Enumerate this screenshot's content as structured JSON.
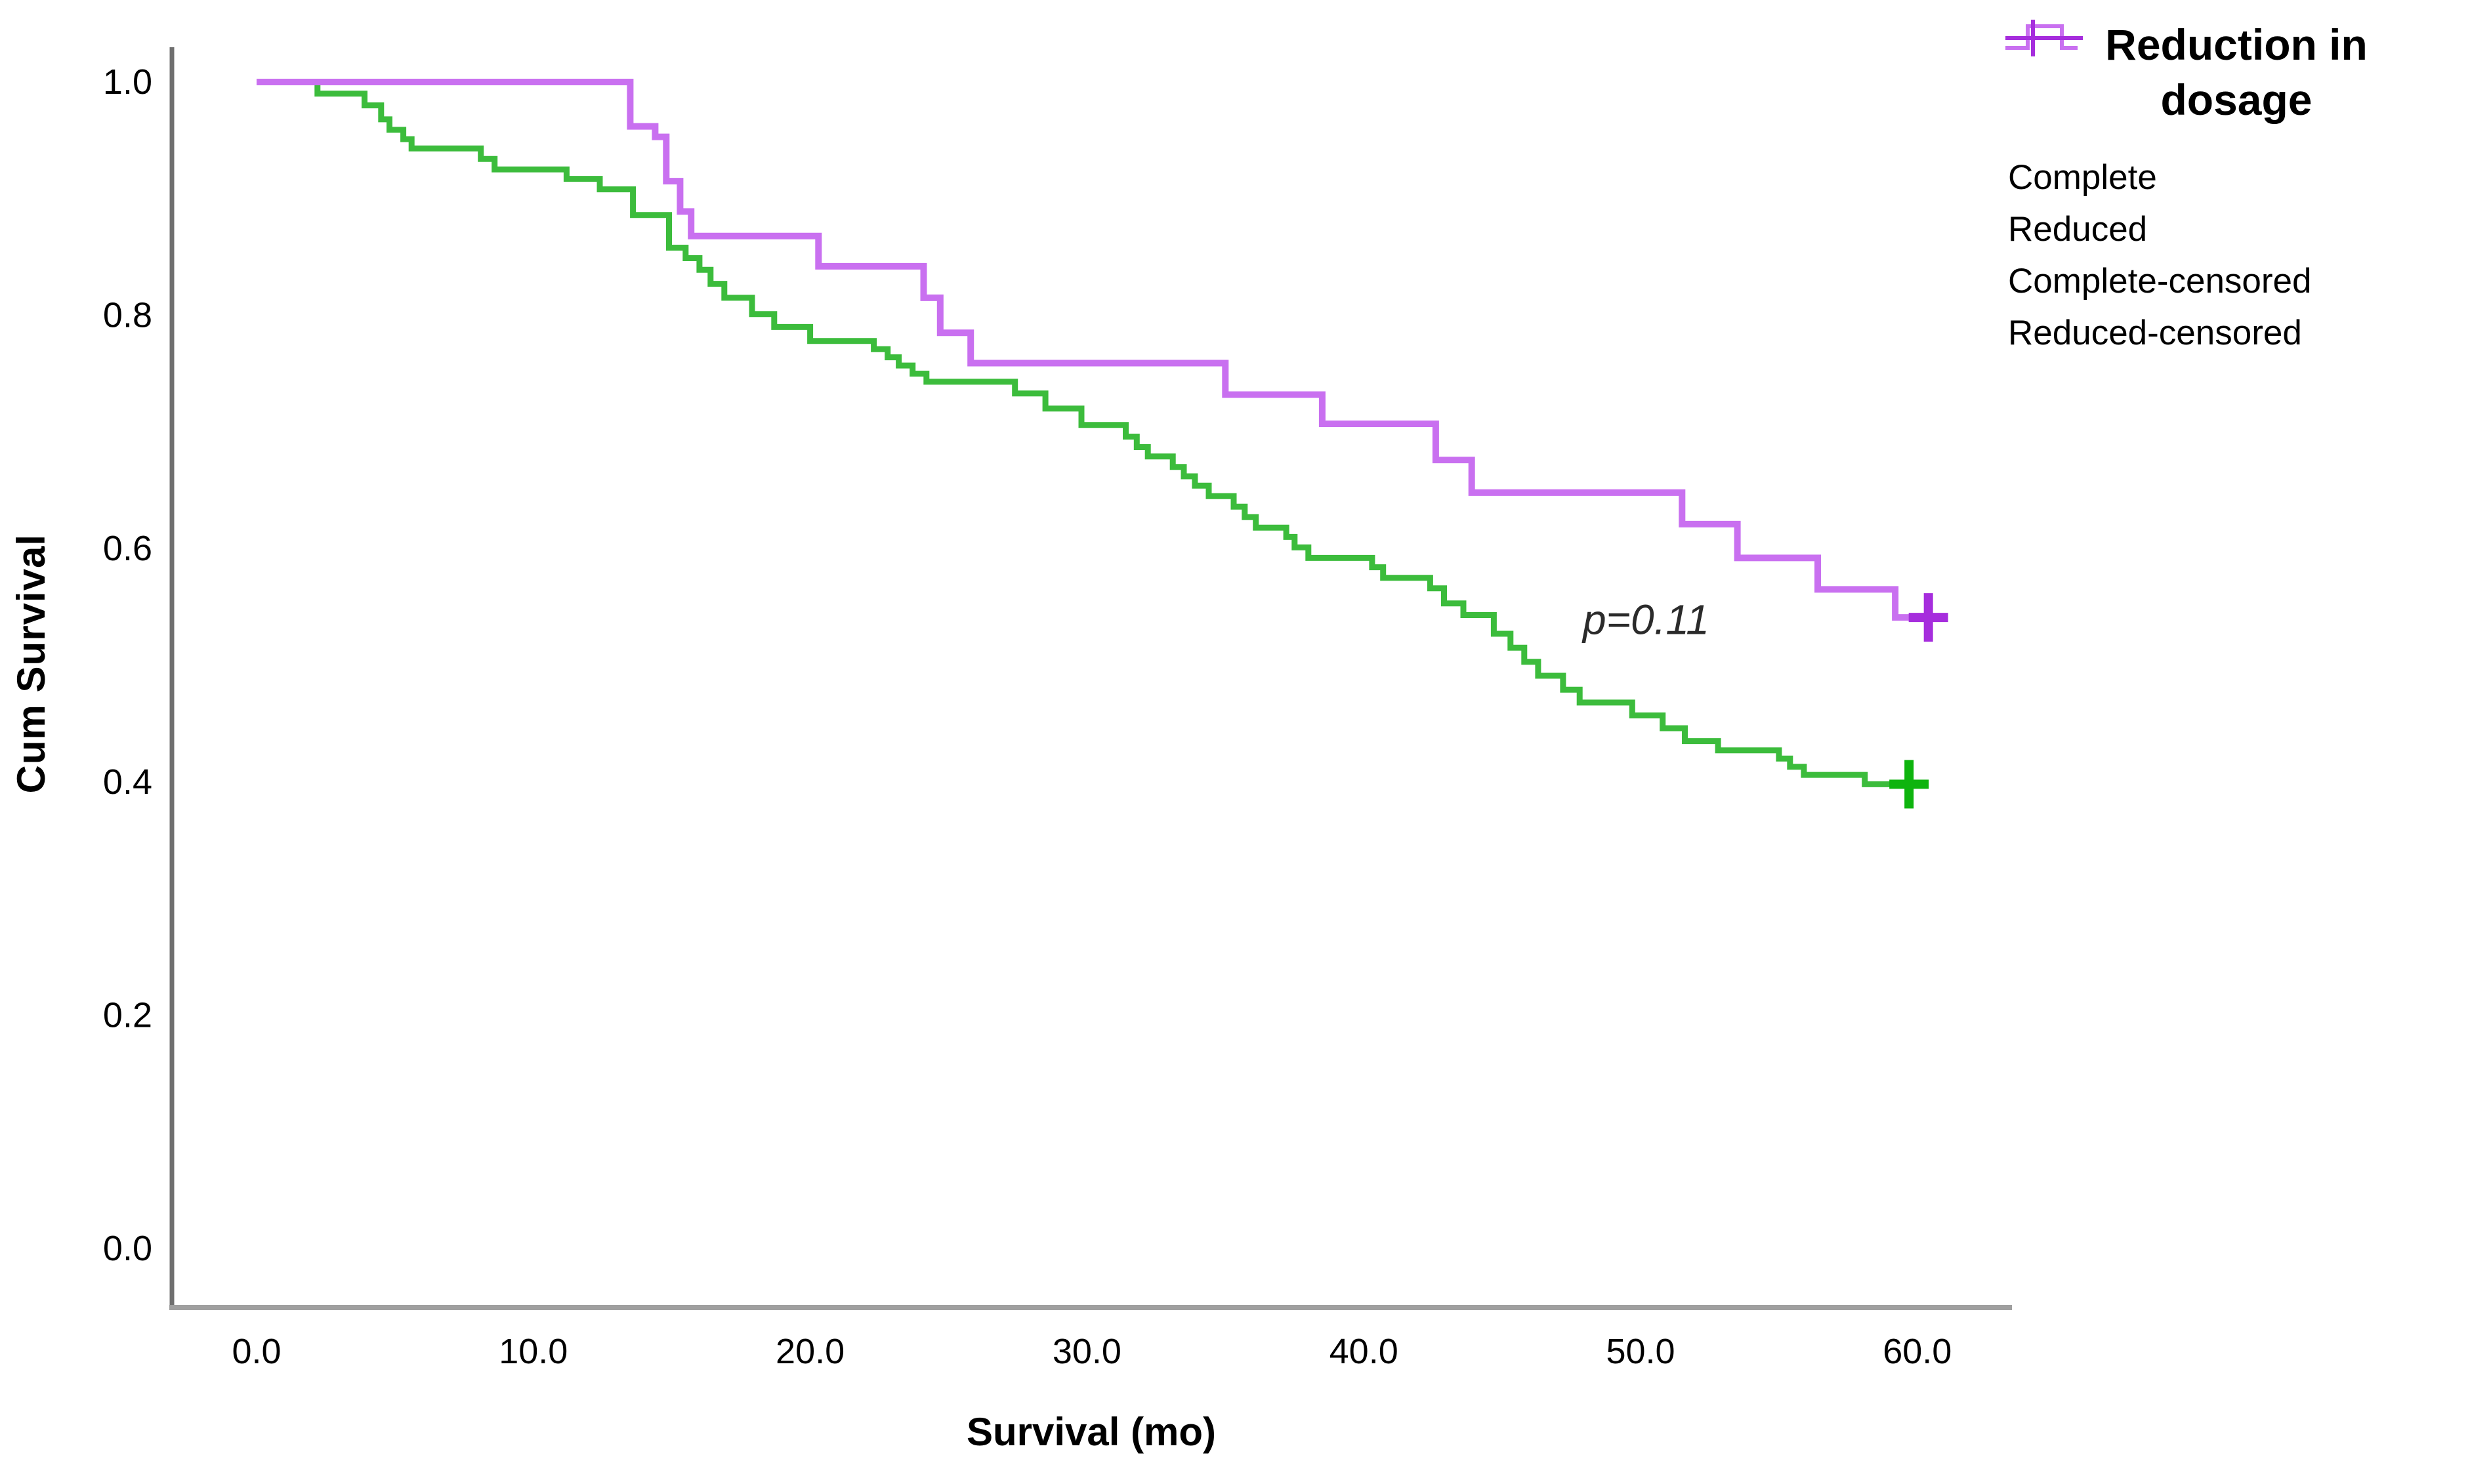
{
  "figure": {
    "y_axis_title": "Cum Survival",
    "x_axis_title": "Survival (mo)",
    "legend": {
      "title": "Reduction in dosage",
      "items": [
        {
          "label": "Complete",
          "type": "step-line",
          "color": "#3cbc3c"
        },
        {
          "label": "Reduced",
          "type": "step-line",
          "color": "#c970f0"
        },
        {
          "label": "Complete-censored",
          "type": "censor-plus",
          "color": "#0eb40e"
        },
        {
          "label": "Reduced-censored",
          "type": "censor-plus",
          "color": "#a62ddd"
        }
      ]
    }
  },
  "chart_data": {
    "type": "line",
    "subtype": "kaplan-meier-step",
    "title": "",
    "xlabel": "Survival (mo)",
    "ylabel": "Cum Survival",
    "xlim": [
      0,
      63.5
    ],
    "ylim": [
      0,
      1.05
    ],
    "grid": false,
    "legend_position": "top-right",
    "annotation": {
      "text": "p=0.11",
      "x": 50.2,
      "y": 0.539,
      "color": "#2b2b2b"
    },
    "x_ticks": [
      {
        "value": 0,
        "label": "0.0"
      },
      {
        "value": 10,
        "label": "10.0"
      },
      {
        "value": 20,
        "label": "20.0"
      },
      {
        "value": 30,
        "label": "30.0"
      },
      {
        "value": 40,
        "label": "40.0"
      },
      {
        "value": 50,
        "label": "50.0"
      },
      {
        "value": 60,
        "label": "60.0"
      }
    ],
    "y_ticks": [
      {
        "value": 0.0,
        "label": "0.0"
      },
      {
        "value": 0.2,
        "label": "0.2"
      },
      {
        "value": 0.4,
        "label": "0.4"
      },
      {
        "value": 0.6,
        "label": "0.6"
      },
      {
        "value": 0.8,
        "label": "0.8"
      },
      {
        "value": 1.0,
        "label": "1.0"
      }
    ],
    "series": [
      {
        "name": "Complete",
        "color": "#3cbc3c",
        "censor_color": "#0eb40e",
        "line_width": 9,
        "points": [
          [
            0,
            1.0
          ],
          [
            2.2,
            0.99
          ],
          [
            3.9,
            0.98
          ],
          [
            4.5,
            0.968
          ],
          [
            4.8,
            0.959
          ],
          [
            5.3,
            0.951
          ],
          [
            5.6,
            0.943
          ],
          [
            8.1,
            0.934
          ],
          [
            8.6,
            0.925
          ],
          [
            11.2,
            0.917
          ],
          [
            12.4,
            0.908
          ],
          [
            13.6,
            0.886
          ],
          [
            14.9,
            0.858
          ],
          [
            15.5,
            0.849
          ],
          [
            16.0,
            0.839
          ],
          [
            16.4,
            0.827
          ],
          [
            16.9,
            0.815
          ],
          [
            17.9,
            0.801
          ],
          [
            18.7,
            0.79
          ],
          [
            20.0,
            0.778
          ],
          [
            22.3,
            0.771
          ],
          [
            22.8,
            0.764
          ],
          [
            23.2,
            0.757
          ],
          [
            23.7,
            0.75
          ],
          [
            24.2,
            0.743
          ],
          [
            27.4,
            0.733
          ],
          [
            28.5,
            0.72
          ],
          [
            29.8,
            0.706
          ],
          [
            31.4,
            0.696
          ],
          [
            31.8,
            0.687
          ],
          [
            32.2,
            0.679
          ],
          [
            33.1,
            0.67
          ],
          [
            33.5,
            0.662
          ],
          [
            33.9,
            0.654
          ],
          [
            34.4,
            0.645
          ],
          [
            35.3,
            0.636
          ],
          [
            35.7,
            0.627
          ],
          [
            36.1,
            0.618
          ],
          [
            37.2,
            0.61
          ],
          [
            37.5,
            0.601
          ],
          [
            38.0,
            0.592
          ],
          [
            40.3,
            0.584
          ],
          [
            40.7,
            0.575
          ],
          [
            42.4,
            0.566
          ],
          [
            42.9,
            0.553
          ],
          [
            43.6,
            0.543
          ],
          [
            44.7,
            0.527
          ],
          [
            45.3,
            0.515
          ],
          [
            45.8,
            0.503
          ],
          [
            46.3,
            0.491
          ],
          [
            47.2,
            0.479
          ],
          [
            47.8,
            0.468
          ],
          [
            49.7,
            0.457
          ],
          [
            50.8,
            0.446
          ],
          [
            51.6,
            0.435
          ],
          [
            52.8,
            0.427
          ],
          [
            55.0,
            0.42
          ],
          [
            55.4,
            0.413
          ],
          [
            55.9,
            0.406
          ],
          [
            58.1,
            0.398
          ],
          [
            60.3,
            0.398
          ]
        ],
        "censored": [
          [
            59.7,
            0.398
          ]
        ]
      },
      {
        "name": "Reduced",
        "color": "#c970f0",
        "censor_color": "#a62ddd",
        "line_width": 10,
        "points": [
          [
            0,
            1.0
          ],
          [
            13.5,
            0.962
          ],
          [
            14.4,
            0.953
          ],
          [
            14.8,
            0.915
          ],
          [
            15.3,
            0.889
          ],
          [
            15.7,
            0.868
          ],
          [
            20.3,
            0.842
          ],
          [
            24.1,
            0.815
          ],
          [
            24.7,
            0.785
          ],
          [
            25.8,
            0.759
          ],
          [
            35.0,
            0.732
          ],
          [
            38.5,
            0.707
          ],
          [
            42.6,
            0.676
          ],
          [
            43.9,
            0.648
          ],
          [
            51.5,
            0.621
          ],
          [
            53.5,
            0.592
          ],
          [
            56.4,
            0.565
          ],
          [
            59.2,
            0.541
          ],
          [
            60.4,
            0.541
          ]
        ],
        "censored": [
          [
            60.4,
            0.541
          ]
        ]
      }
    ]
  }
}
